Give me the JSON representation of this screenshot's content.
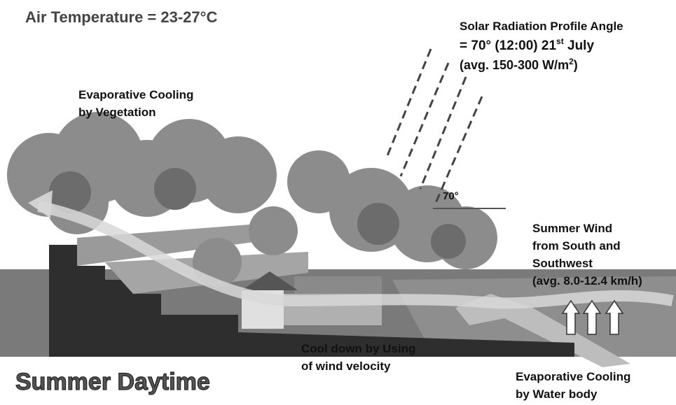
{
  "air_temperature": "Air Temperature = 23-27°C",
  "solar_radiation": {
    "line1": "Solar Radiation Profile Angle",
    "line2": "= 70° (12:00) 21",
    "line2_sup": "st",
    "line2_end": " July",
    "line3": "(avg. 150-300 W/m",
    "line3_sup": "2",
    "line3_end": ")"
  },
  "angle_label": "70°",
  "vegetation": {
    "line1": "Evaporative Cooling",
    "line2": "by Vegetation"
  },
  "summer_wind": {
    "line1": "Summer Wind",
    "line2": "from South and",
    "line3": "Southwest",
    "line4": "(avg. 8.0-12.4 km/h)"
  },
  "cool_down": {
    "line1": "Cool down by Using",
    "line2": "of wind velocity"
  },
  "scene_title": "Summer Daytime",
  "water_body": {
    "line1": "Evaporative Cooling",
    "line2": "by Water body"
  }
}
